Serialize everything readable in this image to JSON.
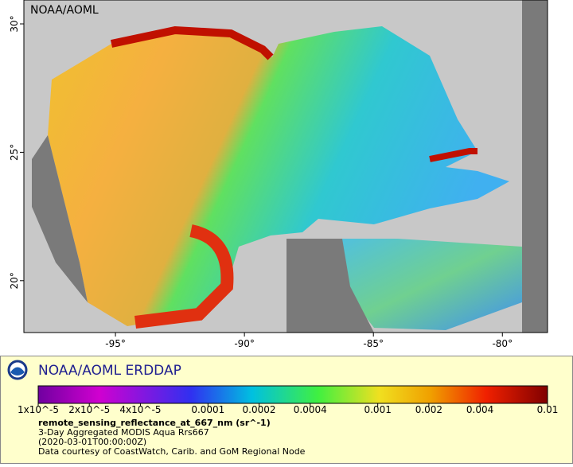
{
  "map": {
    "label": "NOAA/AOML",
    "xlim": [
      -98.55,
      -78.25
    ],
    "ylim": [
      17.98,
      30.93
    ],
    "xticks": [
      {
        "value": -95,
        "label": "-95°"
      },
      {
        "value": -90,
        "label": "-90°"
      },
      {
        "value": -85,
        "label": "-85°"
      },
      {
        "value": -80,
        "label": "-80°"
      }
    ],
    "yticks": [
      {
        "value": 30,
        "label": "30°"
      },
      {
        "value": 25,
        "label": "25°"
      },
      {
        "value": 20,
        "label": "20°"
      }
    ]
  },
  "legend": {
    "title": "NOAA/AOML ERDDAP",
    "colorbar": {
      "log": true,
      "lim": [
        1e-05,
        0.01
      ],
      "ticks": [
        {
          "value": 1e-05,
          "label": "1x10^-5"
        },
        {
          "value": 2e-05,
          "label": "2x10^-5"
        },
        {
          "value": 4e-05,
          "label": "4x10^-5"
        },
        0.0001,
        0.0002,
        0.0004,
        0.001,
        0.002,
        0.004,
        0.01
      ]
    },
    "variable": "remote_sensing_reflectance_at_667_nm (sr^-1)",
    "lines": [
      "3-Day Aggregated MODIS Aqua Rrs667",
      "(2020-03-01T00:00:00Z)",
      "Data courtesy of CoastWatch, Carib. and GoM Regional Node"
    ]
  }
}
